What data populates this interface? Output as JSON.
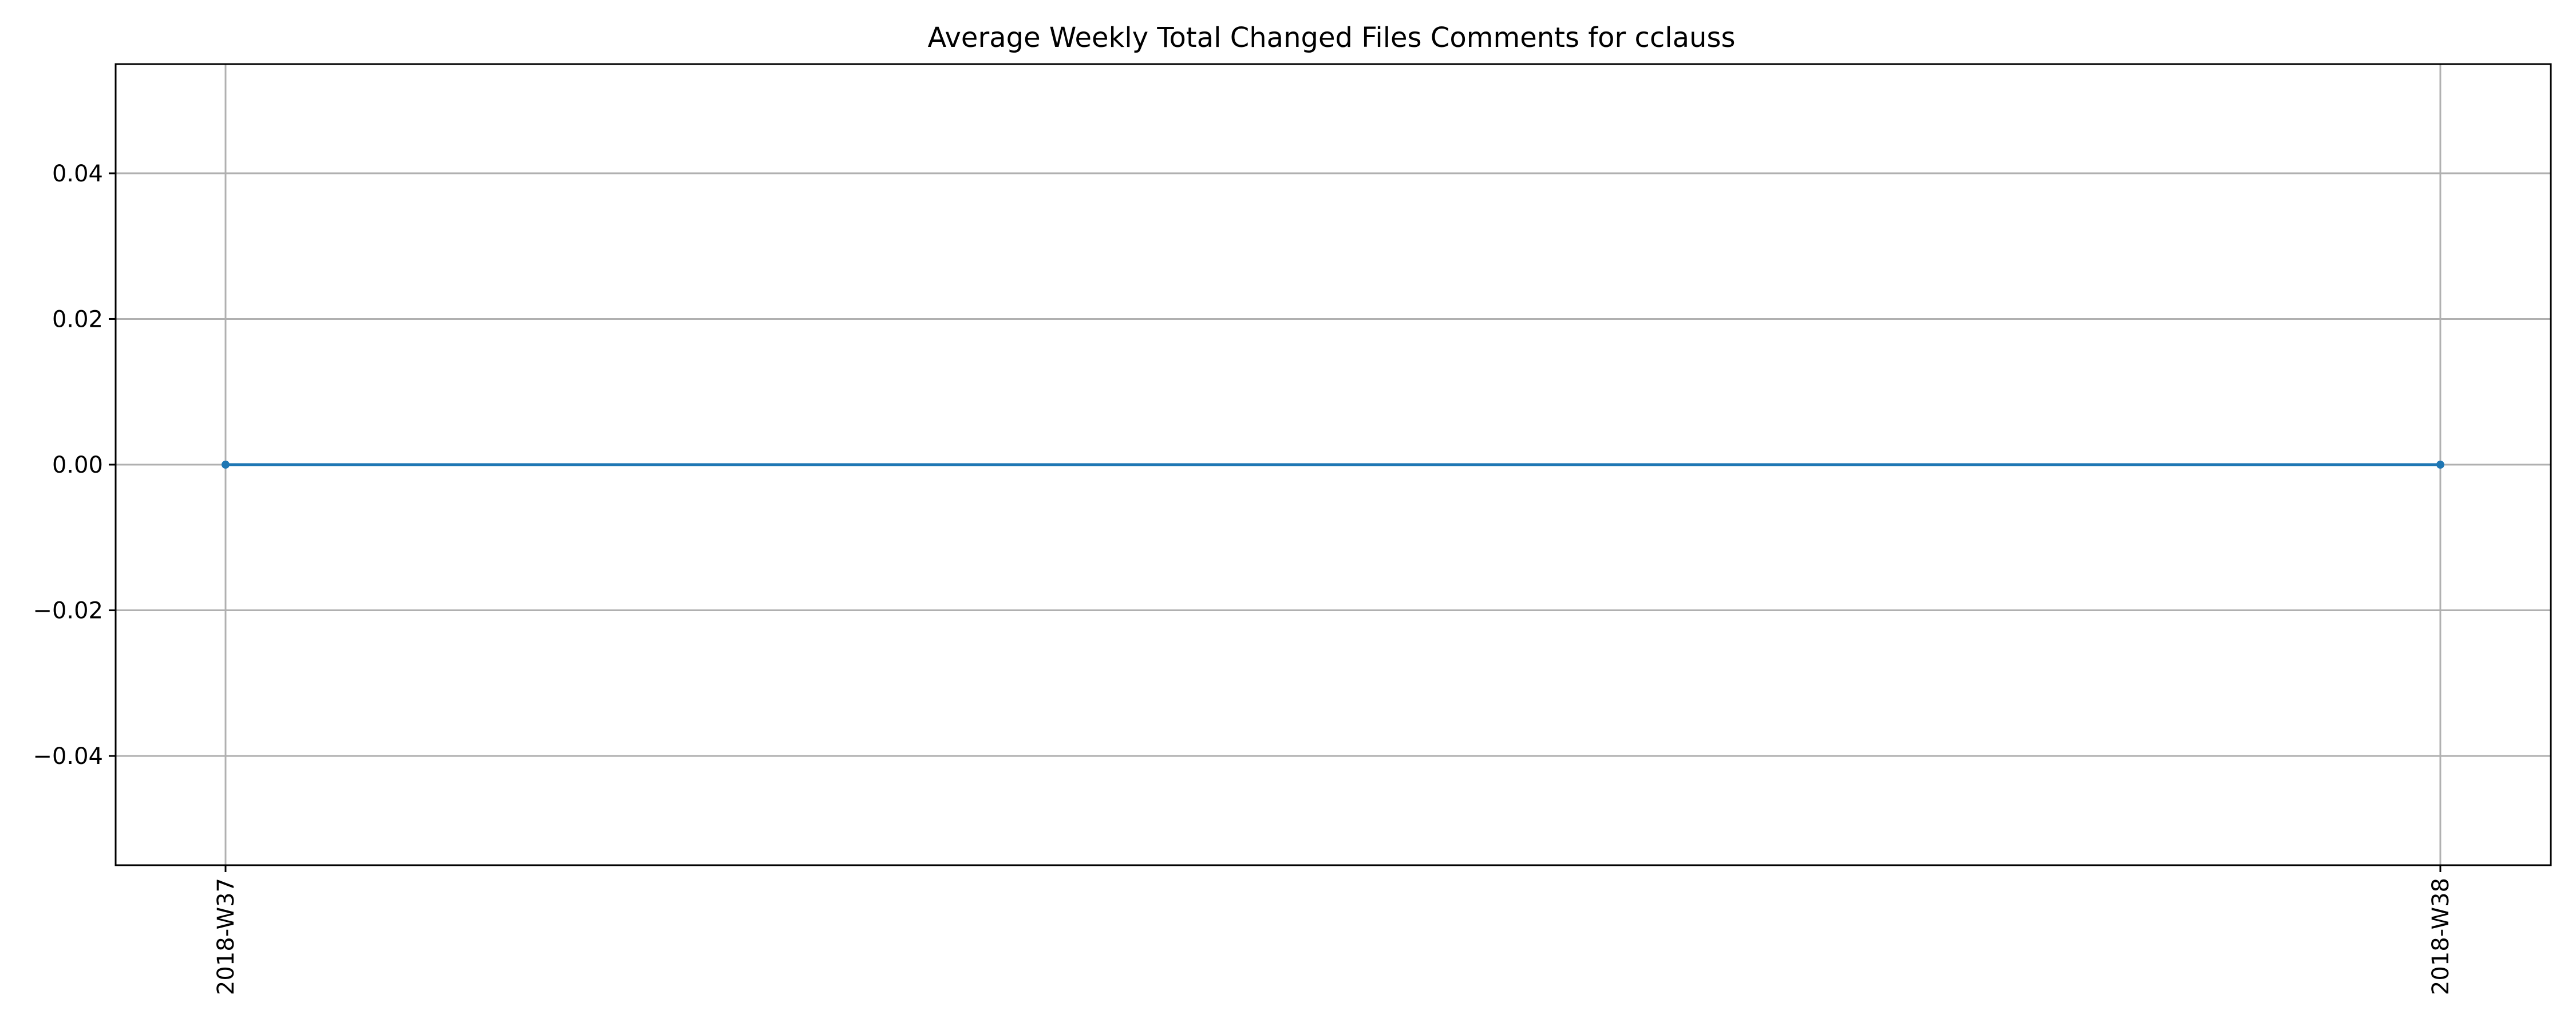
{
  "chart_data": {
    "type": "line",
    "title": "Average Weekly Total Changed Files Comments for cclauss",
    "xlabel": "",
    "ylabel": "",
    "categories": [
      "2018-W37",
      "2018-W38"
    ],
    "series": [
      {
        "values": [
          0.0,
          0.0
        ]
      }
    ],
    "ylim": [
      -0.055,
      0.055
    ],
    "yticks": [
      -0.04,
      -0.02,
      0.0,
      0.02,
      0.04
    ],
    "ytick_labels": [
      "−0.04",
      "−0.02",
      "0.00",
      "0.02",
      "0.04"
    ],
    "grid": true,
    "x_tick_rotation": "vertical",
    "colors": {
      "line": "#1f77b4",
      "grid": "#b0b0b0",
      "axes": "#000000"
    }
  }
}
